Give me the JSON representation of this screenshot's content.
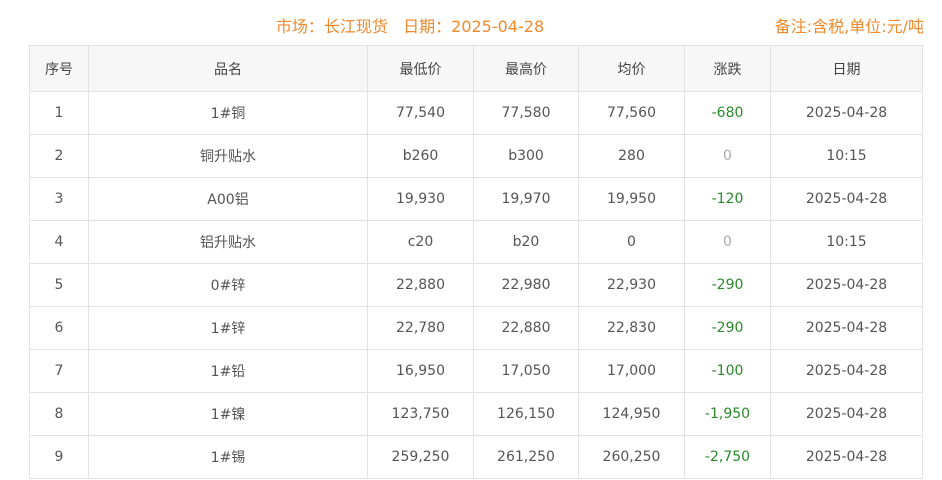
{
  "header": {
    "title": "市场：长江现货   日期：2025-04-28",
    "note": "备注:含税,单位:元/吨"
  },
  "colors": {
    "accent": "#f08a2c",
    "down": "#2a8a2a",
    "flat": "#aaaaaa"
  },
  "table": {
    "columns": [
      "序号",
      "品名",
      "最低价",
      "最高价",
      "均价",
      "涨跌",
      "日期"
    ],
    "rows": [
      [
        "1",
        "1#铜",
        "77,540",
        "77,580",
        "77,560",
        "-680",
        "2025-04-28"
      ],
      [
        "2",
        "铜升贴水",
        "b260",
        "b300",
        "280",
        "0",
        "10:15"
      ],
      [
        "3",
        "A00铝",
        "19,930",
        "19,970",
        "19,950",
        "-120",
        "2025-04-28"
      ],
      [
        "4",
        "铝升贴水",
        "c20",
        "b20",
        "0",
        "0",
        "10:15"
      ],
      [
        "5",
        "0#锌",
        "22,880",
        "22,980",
        "22,930",
        "-290",
        "2025-04-28"
      ],
      [
        "6",
        "1#锌",
        "22,780",
        "22,880",
        "22,830",
        "-290",
        "2025-04-28"
      ],
      [
        "7",
        "1#铅",
        "16,950",
        "17,050",
        "17,000",
        "-100",
        "2025-04-28"
      ],
      [
        "8",
        "1#镍",
        "123,750",
        "126,150",
        "124,950",
        "-1,950",
        "2025-04-28"
      ],
      [
        "9",
        "1#锡",
        "259,250",
        "261,250",
        "260,250",
        "-2,750",
        "2025-04-28"
      ]
    ]
  }
}
